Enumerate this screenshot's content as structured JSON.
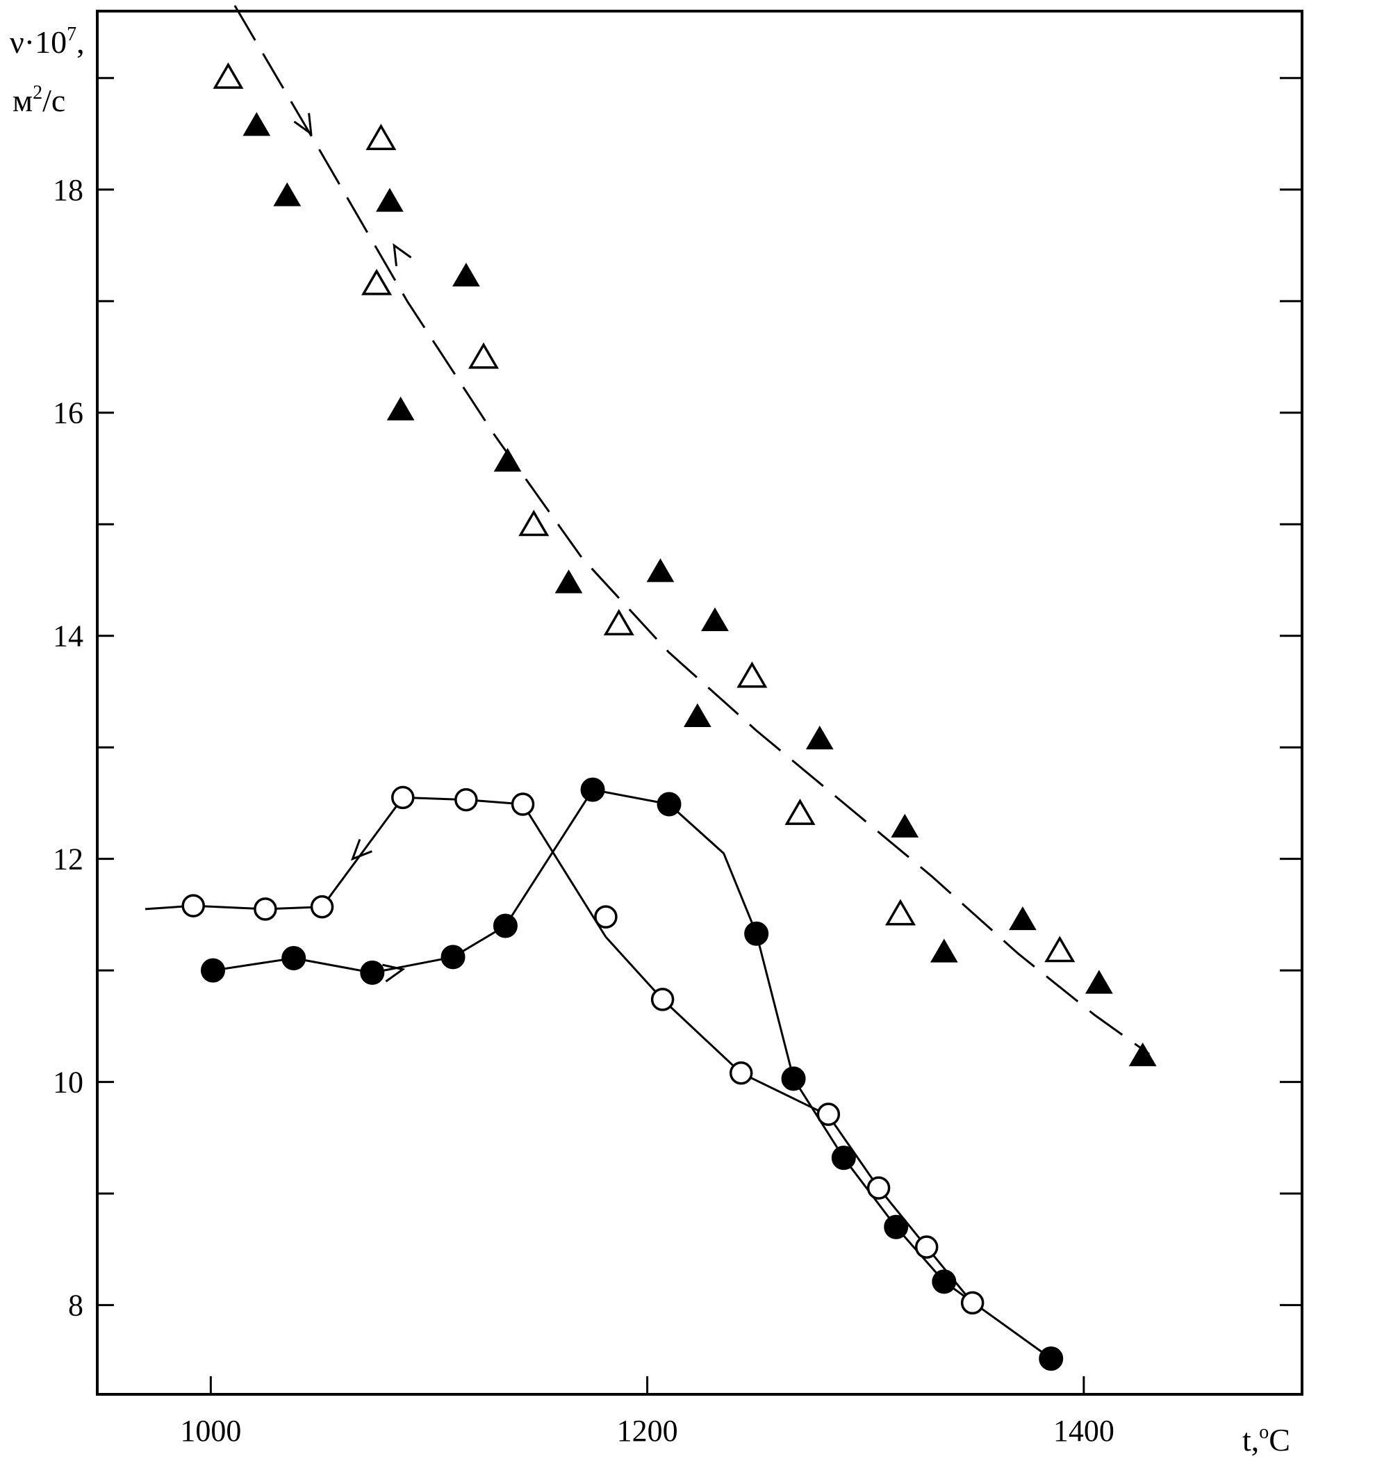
{
  "chart_data": {
    "type": "scatter",
    "title": "",
    "xlabel_text": "t,",
    "xlabel_sup": "o",
    "xlabel_unit": "C",
    "ylabel_line1_text": "ν·10",
    "ylabel_line1_sup": "7",
    "ylabel_line1_tail": ",",
    "ylabel_line2_text": "м",
    "ylabel_line2_sup": "2",
    "ylabel_line2_tail": "/c",
    "xlim": [
      948,
      1500
    ],
    "ylim": [
      7.2,
      19.6
    ],
    "x_ticks": [
      1000,
      1200,
      1400
    ],
    "x_tick_labels": [
      "1000",
      "1200",
      "1400"
    ],
    "y_ticks": [
      8,
      10,
      12,
      14,
      16,
      18
    ],
    "y_tick_labels": [
      "8",
      "10",
      "12",
      "14",
      "16",
      "18"
    ],
    "y_minor_ticks": [
      9,
      11,
      13,
      15,
      17,
      19
    ],
    "grid": false,
    "legend": "none",
    "series": [
      {
        "marker": "open-circle",
        "line": "solid",
        "points": [
          [
            992,
            11.58
          ],
          [
            1025,
            11.55
          ],
          [
            1051,
            11.57
          ],
          [
            1088,
            12.55
          ],
          [
            1117,
            12.53
          ],
          [
            1143,
            12.49
          ],
          [
            1181,
            11.48
          ],
          [
            1207,
            10.74
          ],
          [
            1243,
            10.08
          ],
          [
            1283,
            9.71
          ],
          [
            1306,
            9.05
          ],
          [
            1328,
            8.52
          ],
          [
            1349,
            8.02
          ]
        ],
        "line_points": [
          [
            970,
            11.55
          ],
          [
            992,
            11.58
          ],
          [
            1025,
            11.55
          ],
          [
            1051,
            11.57
          ],
          [
            1088,
            12.55
          ],
          [
            1117,
            12.53
          ],
          [
            1143,
            12.49
          ],
          [
            1181,
            11.3
          ],
          [
            1207,
            10.74
          ],
          [
            1243,
            10.08
          ],
          [
            1283,
            9.7
          ],
          [
            1306,
            9.05
          ],
          [
            1328,
            8.52
          ],
          [
            1349,
            8.02
          ]
        ]
      },
      {
        "marker": "filled-circle",
        "line": "solid",
        "points": [
          [
            1001,
            11.0
          ],
          [
            1038,
            11.11
          ],
          [
            1074,
            10.98
          ],
          [
            1111,
            11.12
          ],
          [
            1135,
            11.4
          ],
          [
            1175,
            12.62
          ],
          [
            1210,
            12.49
          ],
          [
            1250,
            11.33
          ],
          [
            1267,
            10.03
          ],
          [
            1290,
            9.32
          ],
          [
            1314,
            8.7
          ],
          [
            1336,
            8.21
          ],
          [
            1385,
            7.52
          ]
        ],
        "line_points": [
          [
            996,
            11.0
          ],
          [
            1001,
            11.0
          ],
          [
            1038,
            11.11
          ],
          [
            1074,
            10.98
          ],
          [
            1111,
            11.12
          ],
          [
            1135,
            11.4
          ],
          [
            1175,
            12.62
          ],
          [
            1210,
            12.49
          ],
          [
            1235,
            12.05
          ],
          [
            1250,
            11.33
          ],
          [
            1267,
            10.03
          ],
          [
            1290,
            9.32
          ],
          [
            1314,
            8.7
          ],
          [
            1336,
            8.21
          ],
          [
            1385,
            7.52
          ]
        ]
      },
      {
        "marker": "open-triangle",
        "line": "none",
        "points": [
          [
            1008,
            19.0
          ],
          [
            1078,
            18.45
          ],
          [
            1076,
            17.15
          ],
          [
            1125,
            16.49
          ],
          [
            1148,
            14.99
          ],
          [
            1187,
            14.1
          ],
          [
            1248,
            13.63
          ],
          [
            1270,
            12.4
          ],
          [
            1316,
            11.5
          ],
          [
            1389,
            11.17
          ]
        ]
      },
      {
        "marker": "filled-triangle",
        "line": "none",
        "points": [
          [
            1021,
            18.57
          ],
          [
            1035,
            17.94
          ],
          [
            1082,
            17.89
          ],
          [
            1087,
            16.02
          ],
          [
            1117,
            17.22
          ],
          [
            1136,
            15.56
          ],
          [
            1164,
            14.47
          ],
          [
            1206,
            14.57
          ],
          [
            1223,
            13.27
          ],
          [
            1231,
            14.13
          ],
          [
            1279,
            13.07
          ],
          [
            1318,
            12.28
          ],
          [
            1336,
            11.16
          ],
          [
            1372,
            11.45
          ],
          [
            1407,
            10.88
          ],
          [
            1427,
            10.23
          ]
        ]
      },
      {
        "marker": "none",
        "line": "dashed",
        "points": [
          [
            1011,
            19.65
          ],
          [
            1050,
            18.35
          ],
          [
            1090,
            17.0
          ],
          [
            1130,
            15.8
          ],
          [
            1170,
            14.7
          ],
          [
            1210,
            13.85
          ],
          [
            1250,
            13.15
          ],
          [
            1290,
            12.5
          ],
          [
            1330,
            11.85
          ],
          [
            1370,
            11.15
          ],
          [
            1405,
            10.6
          ],
          [
            1430,
            10.25
          ]
        ]
      }
    ],
    "arrows": [
      {
        "x": 1046,
        "y": 18.5,
        "dir": "along-down",
        "ref": 4
      },
      {
        "x": 1084,
        "y": 17.5,
        "dir": "along-up",
        "ref": 4
      },
      {
        "x": 1065,
        "y": 12.0,
        "dir": "to",
        "tx": 1061,
        "ty": 11.92
      },
      {
        "x": 1088,
        "y": 11.01,
        "dir": "to",
        "tx": 1098,
        "ty": 11.05
      }
    ]
  }
}
